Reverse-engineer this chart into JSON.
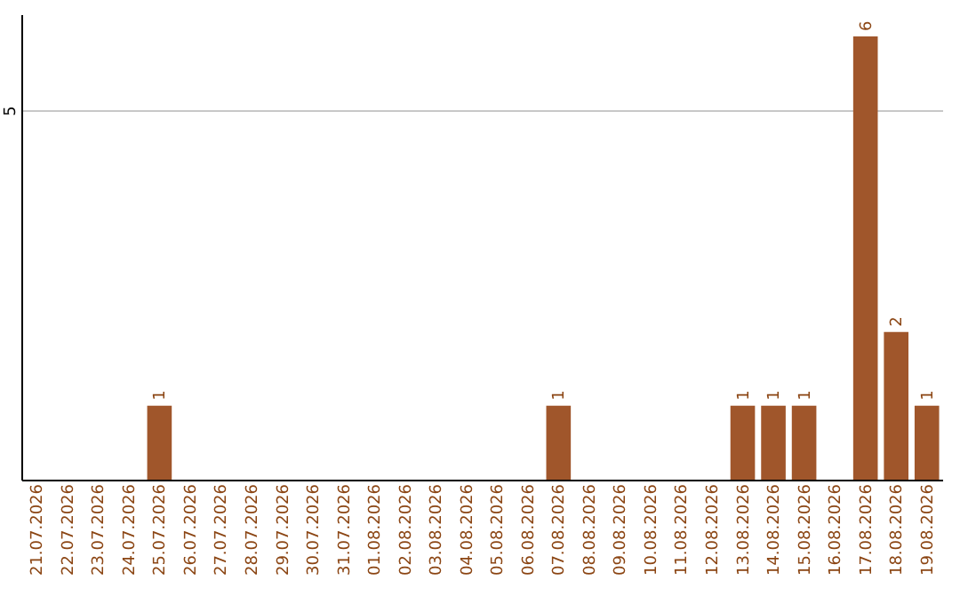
{
  "chart_data": {
    "type": "bar",
    "categories": [
      "21.07.2026",
      "22.07.2026",
      "23.07.2026",
      "24.07.2026",
      "25.07.2026",
      "26.07.2026",
      "27.07.2026",
      "28.07.2026",
      "29.07.2026",
      "30.07.2026",
      "31.07.2026",
      "01.08.2026",
      "02.08.2026",
      "03.08.2026",
      "04.08.2026",
      "05.08.2026",
      "06.08.2026",
      "07.08.2026",
      "08.08.2026",
      "09.08.2026",
      "10.08.2026",
      "11.08.2026",
      "12.08.2026",
      "13.08.2026",
      "14.08.2026",
      "15.08.2026",
      "16.08.2026",
      "17.08.2026",
      "18.08.2026",
      "19.08.2026"
    ],
    "values": [
      0,
      0,
      0,
      0,
      1,
      0,
      0,
      0,
      0,
      0,
      0,
      0,
      0,
      0,
      0,
      0,
      0,
      1,
      0,
      0,
      0,
      0,
      0,
      1,
      1,
      1,
      0,
      6,
      2,
      1
    ],
    "value_labels": [
      null,
      null,
      null,
      null,
      "1",
      null,
      null,
      null,
      null,
      null,
      null,
      null,
      null,
      null,
      null,
      null,
      null,
      "1",
      null,
      null,
      null,
      null,
      null,
      "1",
      "1",
      "1",
      null,
      "6",
      "2",
      "1"
    ],
    "color": "#a0562b",
    "ylim": [
      0,
      6.3
    ],
    "yticks": [
      5
    ],
    "grid": "y"
  }
}
